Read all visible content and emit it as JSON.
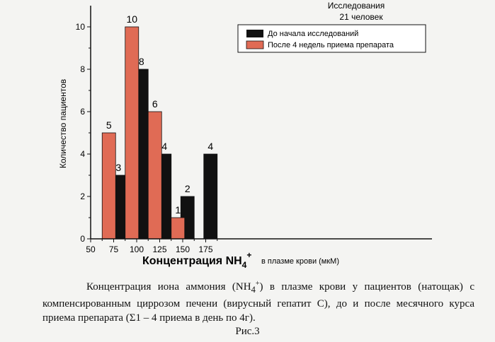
{
  "chart_data": {
    "type": "bar",
    "annotation": [
      "Исследования",
      "21 человек"
    ],
    "ylabel": "Количество пациентов",
    "xlabel_main": "Концентрация NH",
    "xlabel_sub": "4",
    "xlabel_sup": "+",
    "xlabel_tail": "в плазме крови (мкМ)",
    "xlim": [
      50,
      200
    ],
    "ylim": [
      0,
      11
    ],
    "xticks": [
      50,
      75,
      100,
      125,
      150,
      175
    ],
    "yticks": [
      0,
      2,
      4,
      6,
      8,
      10
    ],
    "legend_position": "top-right",
    "series": [
      {
        "name": "До начала исследований",
        "color": "#111111",
        "points": [
          {
            "x": 87.5,
            "value": 3,
            "label": "3"
          },
          {
            "x": 112.5,
            "value": 8,
            "label": "8"
          },
          {
            "x": 137.5,
            "value": 4,
            "label": "4"
          },
          {
            "x": 162.5,
            "value": 2,
            "label": "2"
          },
          {
            "x": 187.5,
            "value": 4,
            "label": "4"
          }
        ]
      },
      {
        "name": "После 4 недель приема препарата",
        "color": "#e06b55",
        "points": [
          {
            "x": 62.5,
            "value": 5,
            "label": "5"
          },
          {
            "x": 87.5,
            "value": 10,
            "label": "10"
          },
          {
            "x": 112.5,
            "value": 6,
            "label": "6"
          },
          {
            "x": 137.5,
            "value": 1,
            "label": "1"
          }
        ]
      }
    ]
  },
  "caption": {
    "part1": "Концентрация иона аммония (NH",
    "sub": "4",
    "sup": "+",
    "part2": ") в плазме крови у пациентов (натощак) с компенсированным циррозом печени (вирусный гепатит С), до и после месячного курса приема препарата (Σ1 – 4 приема в день по 4г)."
  },
  "figure_label": "Рис.3"
}
